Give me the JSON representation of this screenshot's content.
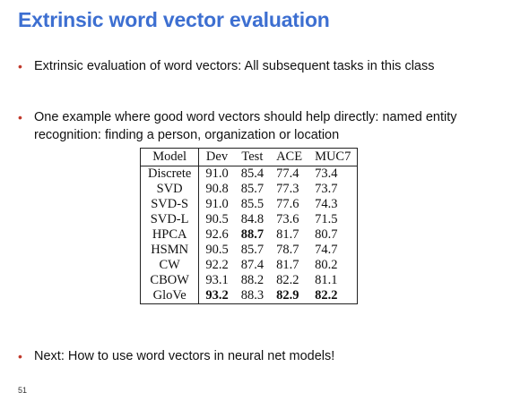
{
  "slide": {
    "title": "Extrinsic word vector evaluation",
    "bullets": [
      "Extrinsic evaluation of word vectors: All subsequent tasks in this class",
      "One example where good word vectors should help directly: named entity recognition: finding a person, organization or location",
      "Next: How to use word vectors in neural net models!"
    ],
    "bullet_marker": "•",
    "accent_color": "#3d6fd1",
    "bullet_color": "#c0392b",
    "page_number": "51"
  },
  "table": {
    "headers": [
      "Model",
      "Dev",
      "Test",
      "ACE",
      "MUC7"
    ],
    "rows": [
      {
        "model": "Discrete",
        "values": [
          "91.0",
          "85.4",
          "77.4",
          "73.4"
        ],
        "bold": [
          false,
          false,
          false,
          false
        ]
      },
      {
        "model": "SVD",
        "values": [
          "90.8",
          "85.7",
          "77.3",
          "73.7"
        ],
        "bold": [
          false,
          false,
          false,
          false
        ]
      },
      {
        "model": "SVD-S",
        "values": [
          "91.0",
          "85.5",
          "77.6",
          "74.3"
        ],
        "bold": [
          false,
          false,
          false,
          false
        ]
      },
      {
        "model": "SVD-L",
        "values": [
          "90.5",
          "84.8",
          "73.6",
          "71.5"
        ],
        "bold": [
          false,
          false,
          false,
          false
        ]
      },
      {
        "model": "HPCA",
        "values": [
          "92.6",
          "88.7",
          "81.7",
          "80.7"
        ],
        "bold": [
          false,
          true,
          false,
          false
        ]
      },
      {
        "model": "HSMN",
        "values": [
          "90.5",
          "85.7",
          "78.7",
          "74.7"
        ],
        "bold": [
          false,
          false,
          false,
          false
        ]
      },
      {
        "model": "CW",
        "values": [
          "92.2",
          "87.4",
          "81.7",
          "80.2"
        ],
        "bold": [
          false,
          false,
          false,
          false
        ]
      },
      {
        "model": "CBOW",
        "values": [
          "93.1",
          "88.2",
          "82.2",
          "81.1"
        ],
        "bold": [
          false,
          false,
          false,
          false
        ]
      },
      {
        "model": "GloVe",
        "values": [
          "93.2",
          "88.3",
          "82.9",
          "82.2"
        ],
        "bold": [
          true,
          false,
          true,
          true
        ]
      }
    ]
  }
}
